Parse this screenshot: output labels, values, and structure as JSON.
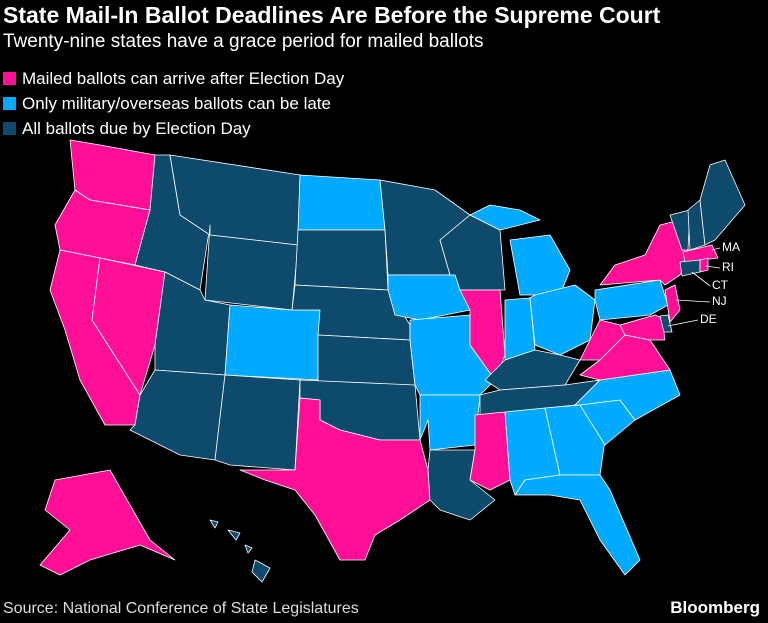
{
  "header": {
    "title": "State Mail-In Ballot Deadlines Are Before the Supreme Court",
    "subtitle": "Twenty-nine states have a grace period for mailed ballots"
  },
  "legend": [
    {
      "label": "Mailed ballots can arrive after Election Day",
      "color": "#ff0f96"
    },
    {
      "label": "Only military/overseas ballots can be late",
      "color": "#00aaff"
    },
    {
      "label": "All ballots due by Election Day",
      "color": "#0d4a6b"
    }
  ],
  "state_labels": [
    "MA",
    "RI",
    "CT",
    "NJ",
    "DE"
  ],
  "footer": {
    "source": "Source: National Conference of State Legislatures",
    "brand": "Bloomberg"
  }
}
